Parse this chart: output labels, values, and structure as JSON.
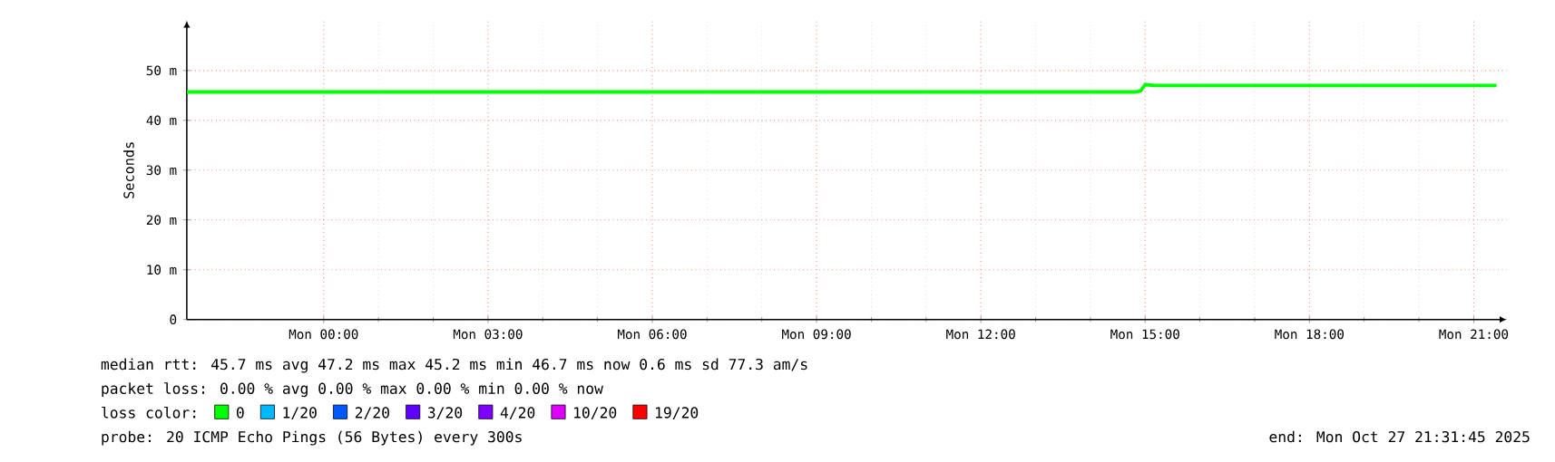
{
  "chart_data": {
    "type": "line",
    "ylabel": "Seconds",
    "xlim": [
      "2025-10-26T21:30",
      "2025-10-27T21:36"
    ],
    "xticks": [
      {
        "value": "2025-10-27T00:00",
        "label": "Mon 00:00"
      },
      {
        "value": "2025-10-27T03:00",
        "label": "Mon 03:00"
      },
      {
        "value": "2025-10-27T06:00",
        "label": "Mon 06:00"
      },
      {
        "value": "2025-10-27T09:00",
        "label": "Mon 09:00"
      },
      {
        "value": "2025-10-27T12:00",
        "label": "Mon 12:00"
      },
      {
        "value": "2025-10-27T15:00",
        "label": "Mon 15:00"
      },
      {
        "value": "2025-10-27T18:00",
        "label": "Mon 18:00"
      },
      {
        "value": "2025-10-27T21:00",
        "label": "Mon 21:00"
      }
    ],
    "ylim": [
      0,
      60
    ],
    "yticks": [
      0,
      {
        "value": 10,
        "label": "10 m"
      },
      {
        "value": 20,
        "label": "20 m"
      },
      {
        "value": 30,
        "label": "30 m"
      },
      {
        "value": 40,
        "label": "40 m"
      },
      {
        "value": 50,
        "label": "50 m"
      }
    ],
    "grid": true,
    "legend": "bottom",
    "series": [
      {
        "name": "0",
        "color": "#00ff00",
        "x": [
          "2025-10-26T21:30",
          "2025-10-27T00:00",
          "2025-10-27T03:00",
          "2025-10-27T06:00",
          "2025-10-27T09:00",
          "2025-10-27T12:00",
          "2025-10-27T14:50",
          "2025-10-27T14:55",
          "2025-10-27T15:00",
          "2025-10-27T15:10",
          "2025-10-27T18:00",
          "2025-10-27T21:25"
        ],
        "values": [
          45.7,
          45.7,
          45.7,
          45.7,
          45.7,
          45.7,
          45.7,
          45.9,
          47.2,
          47.0,
          47.0,
          47.0
        ]
      },
      {
        "name": "1/20",
        "color": "#00b8ff"
      },
      {
        "name": "2/20",
        "color": "#0059ff"
      },
      {
        "name": "3/20",
        "color": "#5e00ff"
      },
      {
        "name": "4/20",
        "color": "#7e00ff"
      },
      {
        "name": "10/20",
        "color": "#dd00ff"
      },
      {
        "name": "19/20",
        "color": "#ff0000"
      }
    ],
    "annotations": [
      "median rtt:  45.7 ms avg  47.2 ms max  45.2 ms min  46.7 ms now  0.6 ms sd  77.3   am/s",
      "packet loss: 0.00 % avg  0.00 % max  0.00 % min  0.00 % now",
      "loss color:",
      "probe:       20 ICMP Echo Pings (56 Bytes) every 300s",
      "end: Mon Oct 27 21:31:45 2025"
    ]
  }
}
